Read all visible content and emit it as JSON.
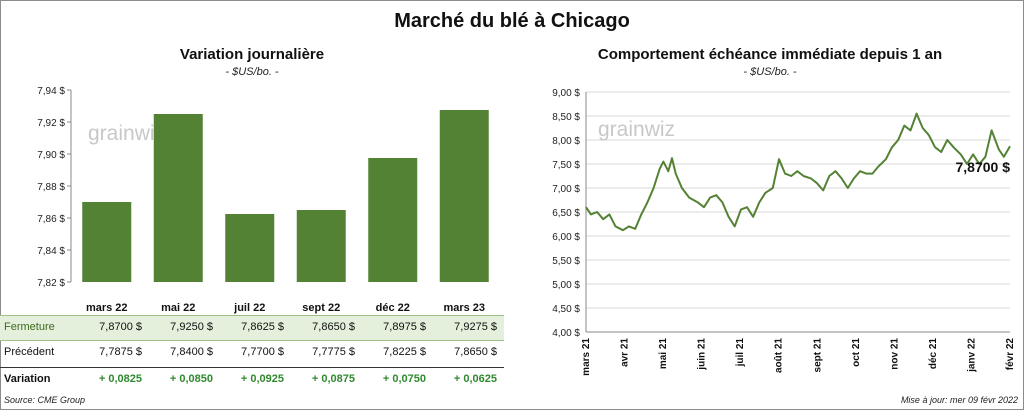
{
  "title": "Marché du blé à Chicago",
  "footer": {
    "source": "Source: CME Group",
    "updated": "Mise à jour: mer 09 févr 2022"
  },
  "watermark": "grainwiz",
  "colors": {
    "bar": "#548235",
    "line": "#548235",
    "grid": "#d9d9d9",
    "table_highlight": "#e4efdc",
    "positive": "#2f8a2f"
  },
  "table": {
    "rows": [
      {
        "label": "Fermeture",
        "values": [
          "7,8700  $",
          "7,9250  $",
          "7,8625  $",
          "7,8650  $",
          "7,8975  $",
          "7,9275  $"
        ]
      },
      {
        "label": "Précédent",
        "values": [
          "7,7875  $",
          "7,8400  $",
          "7,7700  $",
          "7,7775  $",
          "7,8225  $",
          "7,8650  $"
        ]
      },
      {
        "label": "Variation",
        "values": [
          "+ 0,0825",
          "+ 0,0850",
          "+ 0,0925",
          "+ 0,0875",
          "+ 0,0750",
          "+ 0,0625"
        ]
      }
    ]
  },
  "chart_data": [
    {
      "type": "bar",
      "title": "Variation  journalière",
      "subtitle": "- $US/bo. -",
      "categories": [
        "mars 22",
        "mai 22",
        "juil 22",
        "sept 22",
        "déc 22",
        "mars 23"
      ],
      "values": [
        7.87,
        7.925,
        7.8625,
        7.865,
        7.8975,
        7.9275
      ],
      "ylim": [
        7.82,
        7.94
      ],
      "yticks": [
        7.82,
        7.84,
        7.86,
        7.88,
        7.9,
        7.92,
        7.94
      ],
      "ytick_labels": [
        "7,82 $",
        "7,84 $",
        "7,86 $",
        "7,88 $",
        "7,90 $",
        "7,92 $",
        "7,94 $"
      ],
      "grid": false
    },
    {
      "type": "line",
      "title": "Comportement  échéance immédiate depuis 1 an",
      "subtitle": "- $US/bo. -",
      "ylim": [
        4.0,
        9.0
      ],
      "yticks": [
        4,
        4.5,
        5,
        5.5,
        6,
        6.5,
        7,
        7.5,
        8,
        8.5,
        9
      ],
      "ytick_labels": [
        "4,00 $",
        "4,50 $",
        "5,00 $",
        "5,50 $",
        "6,00 $",
        "6,50 $",
        "7,00 $",
        "7,50 $",
        "8,00 $",
        "8,50 $",
        "9,00 $"
      ],
      "xtick_labels": [
        "mars 21",
        "avr 21",
        "mai 21",
        "juin 21",
        "juil 21",
        "août 21",
        "sept 21",
        "oct 21",
        "nov 21",
        "déc 21",
        "janv 22",
        "févr 22"
      ],
      "last_label": "7,8700 $",
      "grid": true,
      "x": [
        "2021-03-01",
        "2021-03-05",
        "2021-03-10",
        "2021-03-15",
        "2021-03-20",
        "2021-03-25",
        "2021-03-31",
        "2021-04-05",
        "2021-04-10",
        "2021-04-15",
        "2021-04-20",
        "2021-04-25",
        "2021-04-30",
        "2021-05-03",
        "2021-05-07",
        "2021-05-10",
        "2021-05-13",
        "2021-05-18",
        "2021-05-24",
        "2021-05-31",
        "2021-06-05",
        "2021-06-10",
        "2021-06-15",
        "2021-06-20",
        "2021-06-25",
        "2021-06-30",
        "2021-07-05",
        "2021-07-10",
        "2021-07-15",
        "2021-07-20",
        "2021-07-25",
        "2021-07-31",
        "2021-08-05",
        "2021-08-10",
        "2021-08-15",
        "2021-08-20",
        "2021-08-25",
        "2021-08-31",
        "2021-09-05",
        "2021-09-10",
        "2021-09-15",
        "2021-09-20",
        "2021-09-25",
        "2021-09-30",
        "2021-10-05",
        "2021-10-10",
        "2021-10-15",
        "2021-10-20",
        "2021-10-25",
        "2021-10-31",
        "2021-11-05",
        "2021-11-10",
        "2021-11-15",
        "2021-11-20",
        "2021-11-25",
        "2021-11-30",
        "2021-12-05",
        "2021-12-10",
        "2021-12-15",
        "2021-12-20",
        "2021-12-25",
        "2021-12-31",
        "2022-01-05",
        "2022-01-10",
        "2022-01-15",
        "2022-01-20",
        "2022-01-25",
        "2022-01-31",
        "2022-02-04",
        "2022-02-09"
      ],
      "y": [
        6.6,
        6.45,
        6.5,
        6.35,
        6.45,
        6.2,
        6.12,
        6.2,
        6.15,
        6.45,
        6.7,
        7.0,
        7.4,
        7.55,
        7.35,
        7.62,
        7.3,
        7.0,
        6.8,
        6.7,
        6.6,
        6.8,
        6.85,
        6.7,
        6.4,
        6.2,
        6.55,
        6.6,
        6.4,
        6.7,
        6.9,
        7.0,
        7.6,
        7.3,
        7.25,
        7.35,
        7.25,
        7.2,
        7.1,
        6.95,
        7.25,
        7.35,
        7.2,
        7.0,
        7.2,
        7.35,
        7.3,
        7.3,
        7.45,
        7.6,
        7.85,
        8.0,
        8.3,
        8.2,
        8.55,
        8.25,
        8.1,
        7.85,
        7.75,
        8.0,
        7.85,
        7.7,
        7.5,
        7.7,
        7.5,
        7.65,
        8.2,
        7.8,
        7.65,
        7.87
      ]
    }
  ]
}
